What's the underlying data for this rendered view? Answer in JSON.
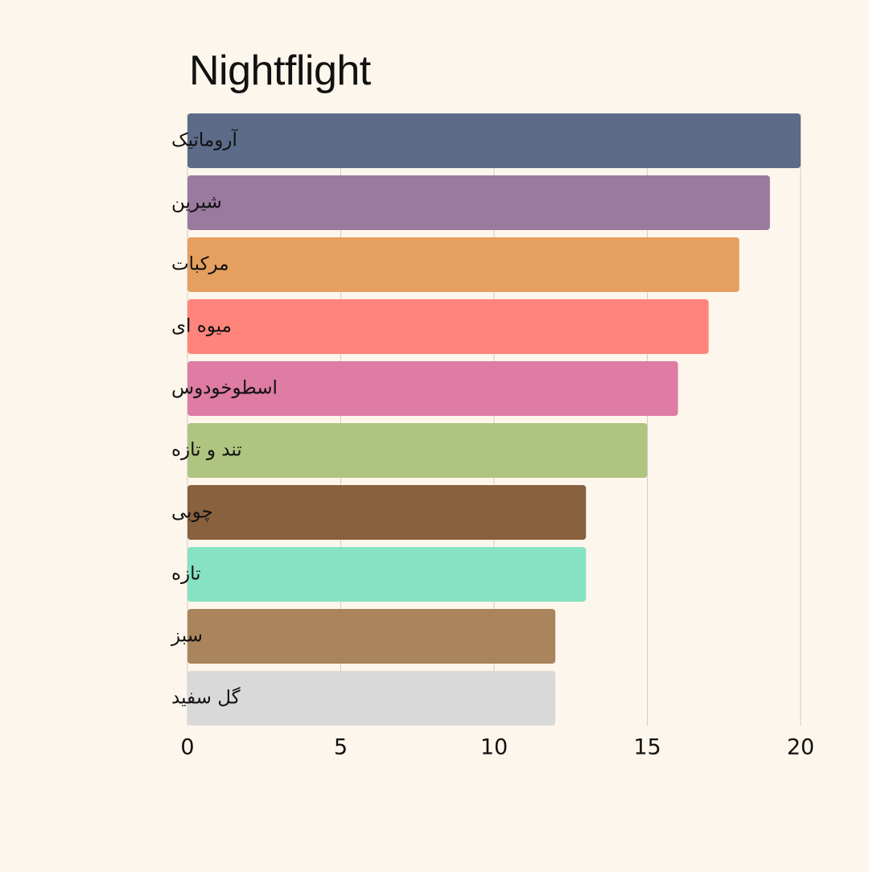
{
  "chart_data": {
    "type": "bar",
    "orientation": "horizontal",
    "title": "Nightflight",
    "xlabel": "",
    "ylabel": "",
    "categories": [
      "آروماتیک",
      "شیرین",
      "مرکبات",
      "میوه ای",
      "اسطوخودوس",
      "تند و تازه",
      "چوبی",
      "تازه",
      "سبز",
      "گل سفید"
    ],
    "values": [
      20,
      19,
      18,
      17,
      16,
      15,
      13,
      13,
      12,
      12
    ],
    "colors": [
      "#5c6b88",
      "#9a7b9f",
      "#e59f5e",
      "#ff857c",
      "#de7ca3",
      "#b0c481",
      "#89613f",
      "#86e2c3",
      "#aa845d",
      "#d9d9d9"
    ],
    "xlim": [
      0,
      20
    ],
    "xticks": [
      "0",
      "5",
      "10",
      "15",
      "20"
    ],
    "grid": true,
    "legend": "none"
  },
  "colors": {
    "background": "#fdf6ec",
    "gridline": "#cfcfc4",
    "text": "#111111"
  }
}
